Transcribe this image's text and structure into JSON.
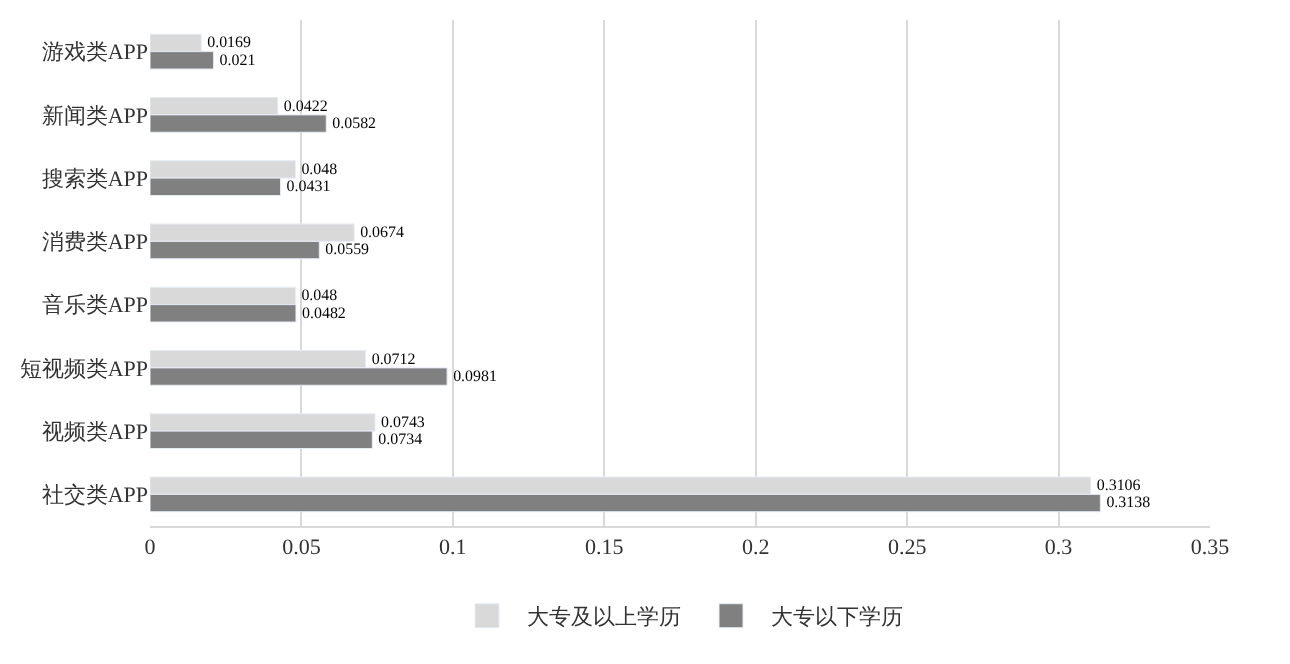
{
  "chart_data": {
    "type": "bar",
    "orientation": "horizontal",
    "categories": [
      "游戏类APP",
      "新闻类APP",
      "搜索类APP",
      "消费类APP",
      "音乐类APP",
      "短视频类APP",
      "视频类APP",
      "社交类APP"
    ],
    "series": [
      {
        "name": "大专及以上学历",
        "color": "#d9d9d9",
        "values": [
          0.0169,
          0.0422,
          0.048,
          0.0674,
          0.048,
          0.0712,
          0.0743,
          0.3106
        ]
      },
      {
        "name": "大专以下学历",
        "color": "#808080",
        "values": [
          0.021,
          0.0582,
          0.0431,
          0.0559,
          0.0482,
          0.0981,
          0.0734,
          0.3138
        ]
      }
    ],
    "xlim": [
      0,
      0.35
    ],
    "xticks": [
      0,
      0.05,
      0.1,
      0.15,
      0.2,
      0.25,
      0.3,
      0.35
    ],
    "grid": "x",
    "legend": "bottom",
    "data_labels": true
  }
}
